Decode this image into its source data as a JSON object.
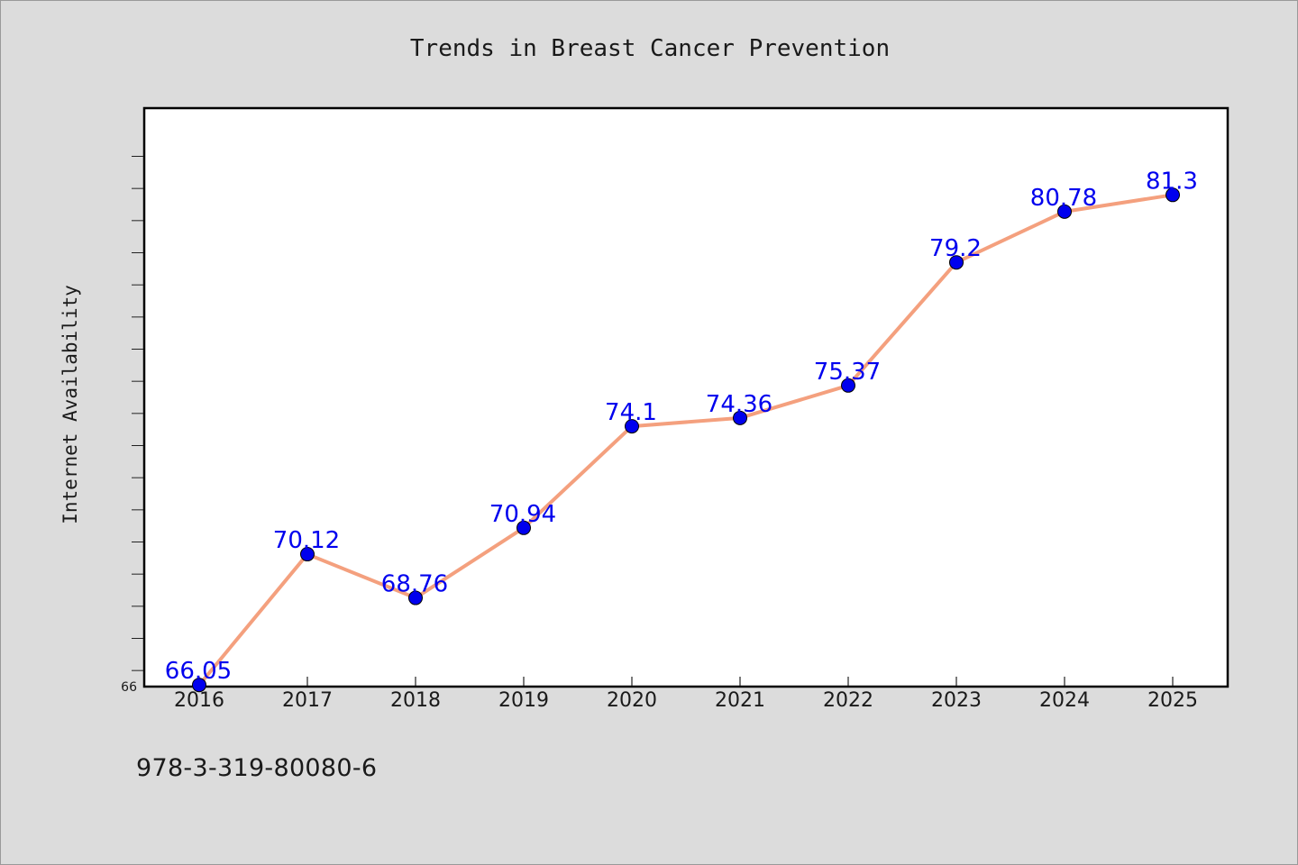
{
  "chart_data": {
    "type": "line",
    "title": "Trends in Breast Cancer Prevention",
    "xlabel": "",
    "ylabel": "Internet Availability",
    "categories": [
      "2016",
      "2017",
      "2018",
      "2019",
      "2020",
      "2021",
      "2022",
      "2023",
      "2024",
      "2025"
    ],
    "series": [
      {
        "values": [
          66.05,
          70.12,
          68.76,
          70.94,
          74.1,
          74.36,
          75.37,
          79.2,
          80.78,
          81.3
        ]
      }
    ],
    "y_tick_labels": [
      "66"
    ],
    "ylim": [
      66,
      84
    ],
    "grid": false,
    "line_color": "#f4a07e",
    "marker_color": "#0000ee",
    "label_color": "#0000ee"
  },
  "footer": {
    "isbn": "978-3-319-80080-6"
  }
}
